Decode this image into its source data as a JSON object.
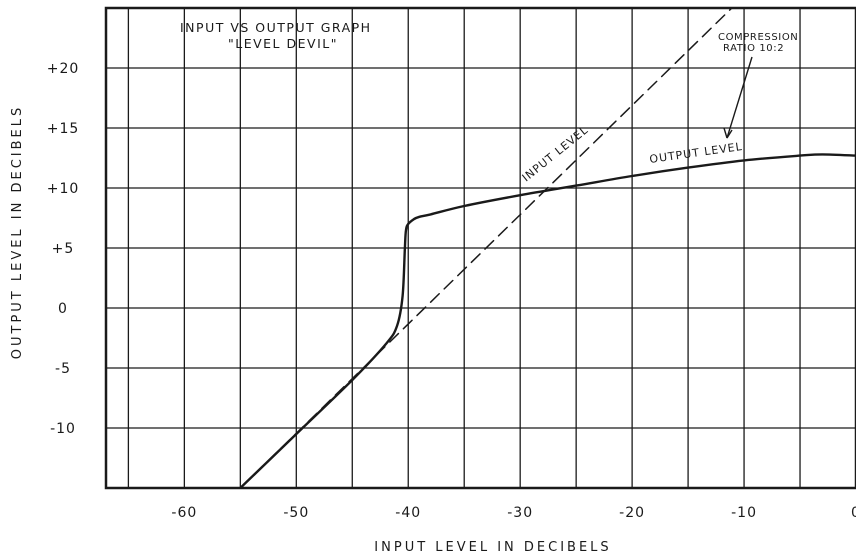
{
  "chart_data": {
    "type": "line",
    "title": "INPUT VS OUTPUT GRAPH",
    "subtitle": "\"LEVEL DEVIL\"",
    "xlabel": "INPUT LEVEL IN DECIBELS",
    "ylabel": "OUTPUT LEVEL IN DECIBELS",
    "xlim": [
      -67,
      0
    ],
    "ylim": [
      -15,
      25
    ],
    "grid": true,
    "x_ticks": [
      -60,
      -50,
      -40,
      -30,
      -20,
      -10,
      0
    ],
    "x_tick_labels": [
      "-60",
      "-50",
      "-40",
      "-30",
      "-20",
      "-10",
      "0"
    ],
    "y_ticks": [
      20,
      15,
      10,
      5,
      0,
      -5,
      -10
    ],
    "y_tick_labels": [
      "+20",
      "+15",
      "+10",
      "+5",
      "0",
      "-5",
      "-10"
    ],
    "series": [
      {
        "name": "OUTPUT LEVEL",
        "style": "solid",
        "x": [
          -55,
          -50,
          -45,
          -42,
          -41,
          -40.5,
          -40.3,
          -40.2,
          -40,
          -39.5,
          -39,
          -38,
          -35,
          -30,
          -25,
          -20,
          -15,
          -10,
          -5,
          -3,
          0
        ],
        "y": [
          -15,
          -10.5,
          -6,
          -3,
          -1.5,
          1,
          5,
          6.5,
          7,
          7.4,
          7.6,
          7.8,
          8.5,
          9.4,
          10.2,
          11,
          11.7,
          12.3,
          12.7,
          12.8,
          12.7
        ]
      },
      {
        "name": "INPUT LEVEL",
        "style": "dashed",
        "x": [
          -55,
          -10
        ],
        "y": [
          -15,
          26
        ]
      }
    ],
    "annotations": [
      {
        "text": "COMPRESSION",
        "line": 1
      },
      {
        "text": "RATIO 10:2",
        "line": 2
      }
    ],
    "colors": {
      "ink": "#1a1a1a",
      "background": "#ffffff"
    }
  }
}
